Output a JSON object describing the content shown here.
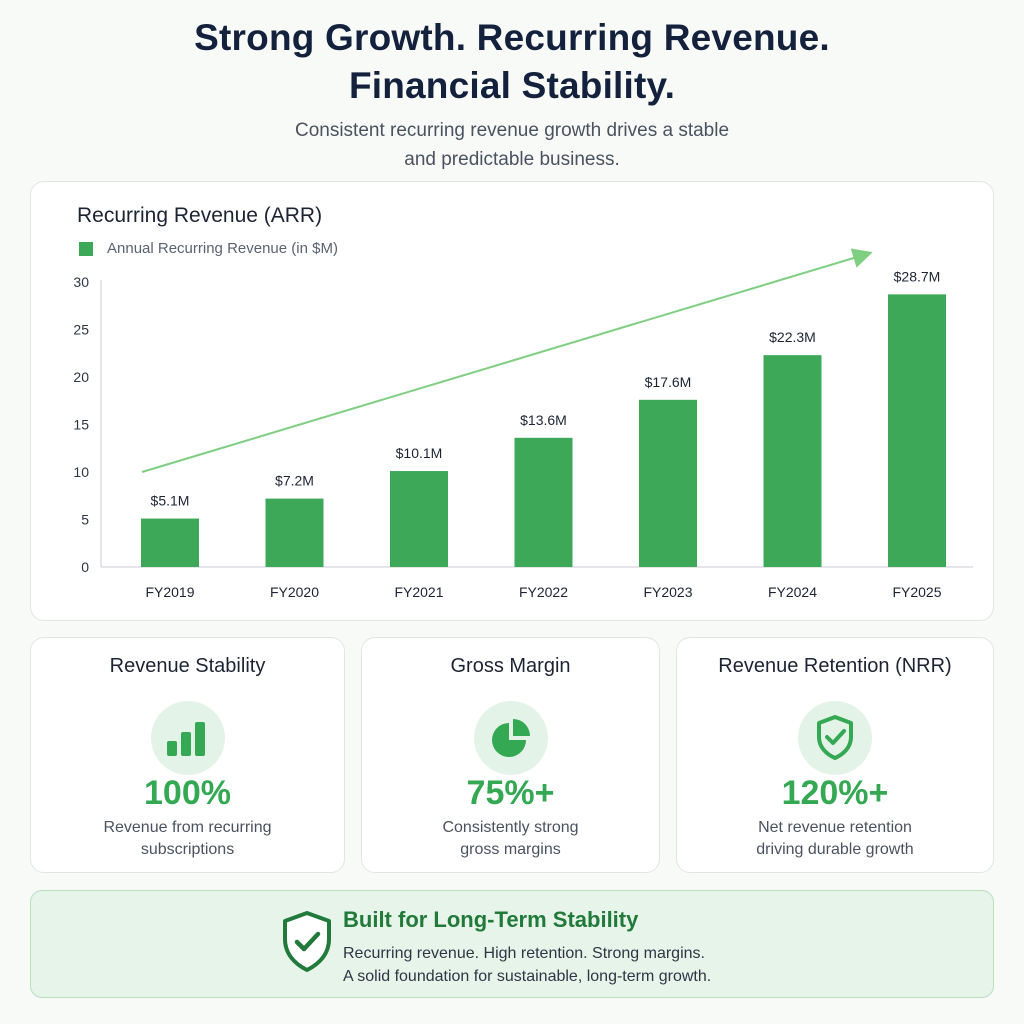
{
  "header": {
    "title_line1": "Strong Growth. Recurring Revenue.",
    "title_line2": "Financial Stability.",
    "subtitle_line1": "Consistent recurring revenue growth drives a stable",
    "subtitle_line2": "and predictable business."
  },
  "chart_data": {
    "type": "bar",
    "title": "Recurring Revenue (ARR)",
    "categories": [
      "FY2019",
      "FY2020",
      "FY2021",
      "FY2022",
      "FY2023",
      "FY2024",
      "FY2025"
    ],
    "series": [
      {
        "name": "Annual Recurring Revenue (in $M)",
        "values": [
          5.1,
          7.2,
          10.1,
          13.6,
          17.6,
          22.3,
          28.7
        ],
        "labels": [
          "$5.1M",
          "$7.2M",
          "$10.1M",
          "$13.6M",
          "$17.6M",
          "$22.3M",
          "$28.7M"
        ]
      }
    ],
    "yticks": [
      0,
      5,
      10,
      15,
      20,
      25,
      30
    ],
    "ylim": [
      0,
      30
    ],
    "xlabel": "",
    "ylabel": "",
    "grid": false,
    "legend": "top-left",
    "trend_arrow": true,
    "bar_color": "#3ea859",
    "trend_color": "#7fcf83"
  },
  "metrics": [
    {
      "title": "Revenue Stability",
      "icon": "bar-chart-icon",
      "value": "100%",
      "desc_line1": "Revenue from recurring",
      "desc_line2": "subscriptions"
    },
    {
      "title": "Gross Margin",
      "icon": "pie-chart-icon",
      "value": "75%+",
      "desc_line1": "Consistently strong",
      "desc_line2": "gross margins"
    },
    {
      "title": "Revenue Retention (NRR)",
      "icon": "shield-check-icon",
      "value": "120%+",
      "desc_line1": "Net revenue retention",
      "desc_line2": "driving durable growth"
    }
  ],
  "footer": {
    "icon": "shield-check-icon",
    "title": "Built for Long-Term Stability",
    "line1": "Recurring revenue. High retention. Strong margins.",
    "line2": "A solid foundation for sustainable, long-term growth."
  },
  "colors": {
    "accent": "#34a853",
    "accent_dark": "#217a3a",
    "icon_bg": "#e4f3e7",
    "footer_bg": "#e7f4e9"
  }
}
